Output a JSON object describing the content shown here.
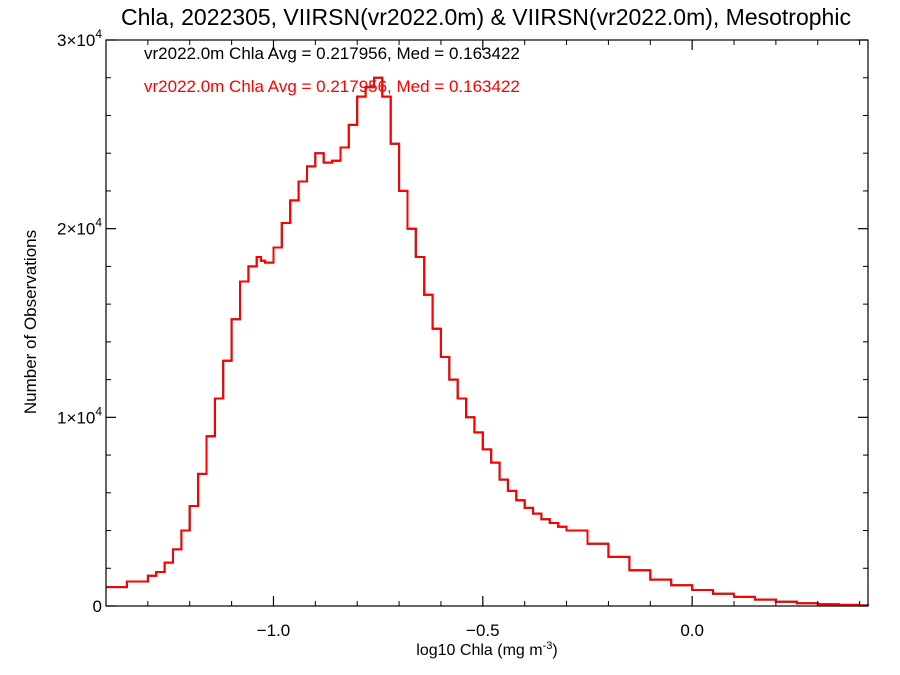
{
  "chart_data": {
    "type": "line",
    "title": "Chla, 2022305, VIIRSN(vr2022.0m) & VIIRSN(vr2022.0m), Mesotrophic",
    "xlabel": "log10 Chla (mg m",
    "xlabel_sup": "-3",
    "xlabel_end": ")",
    "ylabel": "Number of Observations",
    "xlim": [
      -1.4,
      0.42
    ],
    "ylim": [
      0,
      30000
    ],
    "grid": false,
    "x_ticks": [
      {
        "value": -1.0,
        "label": "−1.0"
      },
      {
        "value": -0.5,
        "label": "−0.5"
      },
      {
        "value": 0.0,
        "label": "0.0"
      }
    ],
    "y_ticks": [
      {
        "value": 0,
        "label": "0",
        "exp": ""
      },
      {
        "value": 10000,
        "label": "1×10",
        "exp": "4"
      },
      {
        "value": 20000,
        "label": "2×10",
        "exp": "4"
      },
      {
        "value": 30000,
        "label": "3×10",
        "exp": "4"
      }
    ],
    "annotations": [
      {
        "text": "vr2022.0m Chla Avg = 0.217956, Med = 0.163422",
        "color": "#000000"
      },
      {
        "text": "vr2022.0m Chla Avg = 0.217956, Med = 0.163422",
        "color": "#ff0000"
      }
    ],
    "series": [
      {
        "color": "#000000",
        "x": [
          -1.4,
          -1.35,
          -1.3,
          -1.28,
          -1.26,
          -1.24,
          -1.22,
          -1.2,
          -1.18,
          -1.16,
          -1.14,
          -1.12,
          -1.1,
          -1.08,
          -1.06,
          -1.04,
          -1.03,
          -1.02,
          -1.0,
          -0.98,
          -0.96,
          -0.94,
          -0.92,
          -0.9,
          -0.88,
          -0.86,
          -0.84,
          -0.82,
          -0.8,
          -0.78,
          -0.76,
          -0.74,
          -0.72,
          -0.7,
          -0.68,
          -0.66,
          -0.64,
          -0.62,
          -0.6,
          -0.58,
          -0.56,
          -0.54,
          -0.52,
          -0.5,
          -0.48,
          -0.46,
          -0.44,
          -0.42,
          -0.4,
          -0.38,
          -0.36,
          -0.34,
          -0.32,
          -0.3,
          -0.25,
          -0.2,
          -0.15,
          -0.1,
          -0.05,
          0.0,
          0.05,
          0.1,
          0.15,
          0.2,
          0.25,
          0.3,
          0.35,
          0.4,
          0.42
        ],
        "y": [
          1000,
          1300,
          1600,
          1800,
          2300,
          3000,
          4000,
          5300,
          7000,
          9000,
          11000,
          13000,
          15200,
          17200,
          18000,
          18500,
          18300,
          18200,
          19000,
          20300,
          21500,
          22500,
          23300,
          24000,
          23500,
          23600,
          24300,
          25500,
          27000,
          27500,
          28000,
          27000,
          24500,
          22000,
          20000,
          18500,
          16500,
          14700,
          13200,
          12000,
          11000,
          10000,
          9200,
          8300,
          7600,
          6700,
          6100,
          5600,
          5200,
          4900,
          4600,
          4400,
          4200,
          4000,
          3300,
          2600,
          1900,
          1400,
          1100,
          850,
          650,
          480,
          340,
          220,
          150,
          90,
          60,
          30,
          20
        ]
      },
      {
        "color": "#ff0000",
        "x": [
          -1.4,
          -1.35,
          -1.3,
          -1.28,
          -1.26,
          -1.24,
          -1.22,
          -1.2,
          -1.18,
          -1.16,
          -1.14,
          -1.12,
          -1.1,
          -1.08,
          -1.06,
          -1.04,
          -1.03,
          -1.02,
          -1.0,
          -0.98,
          -0.96,
          -0.94,
          -0.92,
          -0.9,
          -0.88,
          -0.86,
          -0.84,
          -0.82,
          -0.8,
          -0.78,
          -0.76,
          -0.74,
          -0.72,
          -0.7,
          -0.68,
          -0.66,
          -0.64,
          -0.62,
          -0.6,
          -0.58,
          -0.56,
          -0.54,
          -0.52,
          -0.5,
          -0.48,
          -0.46,
          -0.44,
          -0.42,
          -0.4,
          -0.38,
          -0.36,
          -0.34,
          -0.32,
          -0.3,
          -0.25,
          -0.2,
          -0.15,
          -0.1,
          -0.05,
          0.0,
          0.05,
          0.1,
          0.15,
          0.2,
          0.25,
          0.3,
          0.35,
          0.4,
          0.42
        ],
        "y": [
          1000,
          1300,
          1600,
          1800,
          2300,
          3000,
          4000,
          5300,
          7000,
          9000,
          11000,
          13000,
          15200,
          17200,
          18000,
          18500,
          18300,
          18200,
          19000,
          20300,
          21500,
          22500,
          23300,
          24000,
          23500,
          23600,
          24300,
          25500,
          27000,
          27500,
          28000,
          27000,
          24500,
          22000,
          20000,
          18500,
          16500,
          14700,
          13200,
          12000,
          11000,
          10000,
          9200,
          8300,
          7600,
          6700,
          6100,
          5600,
          5200,
          4900,
          4600,
          4400,
          4200,
          4000,
          3300,
          2600,
          1900,
          1400,
          1100,
          850,
          650,
          480,
          340,
          220,
          150,
          90,
          60,
          30,
          20
        ]
      }
    ]
  }
}
